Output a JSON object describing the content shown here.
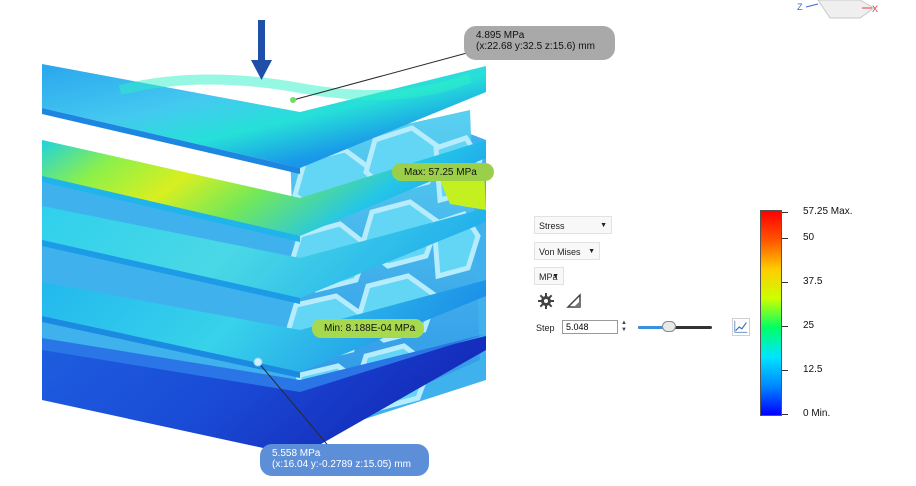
{
  "probes": {
    "top": {
      "value": "4.895 MPa",
      "coords": "(x:22.68 y:32.5 z:15.6) mm"
    },
    "max": {
      "label": "Max: 57.25 MPa"
    },
    "min": {
      "label": "Min: 8.188E-04 MPa"
    },
    "bottom": {
      "value": "5.558 MPa",
      "coords": "(x:16.04 y:-0.2789 z:15.05) mm"
    }
  },
  "panel": {
    "result_type": "Stress",
    "component": "Von Mises",
    "unit": "MPa",
    "settings_icon": "gear-icon",
    "shape_icon": "triangle-ruler-icon",
    "step_label": "Step",
    "step_value": "5.048",
    "step_slider_fraction": 0.4,
    "graph_icon": "line-graph-icon"
  },
  "legend": {
    "ticks": [
      {
        "label": "57.25 Max.",
        "value": 57.25
      },
      {
        "label": "50",
        "value": 50
      },
      {
        "label": "37.5",
        "value": 37.5
      },
      {
        "label": "25",
        "value": 25
      },
      {
        "label": "12.5",
        "value": 12.5
      },
      {
        "label": "0 Min.",
        "value": 0
      }
    ],
    "max": 57.25,
    "min": 0,
    "colors": [
      "#0000ff",
      "#0088ff",
      "#00e5ff",
      "#00ff66",
      "#ccff00",
      "#ffcc00",
      "#ff5500",
      "#ff0000"
    ]
  },
  "view_cube": {
    "axis_z": "Z",
    "axis_x": "X"
  },
  "colors": {
    "arrow": "#1f4fa8",
    "accent": "#3b8fe0"
  }
}
